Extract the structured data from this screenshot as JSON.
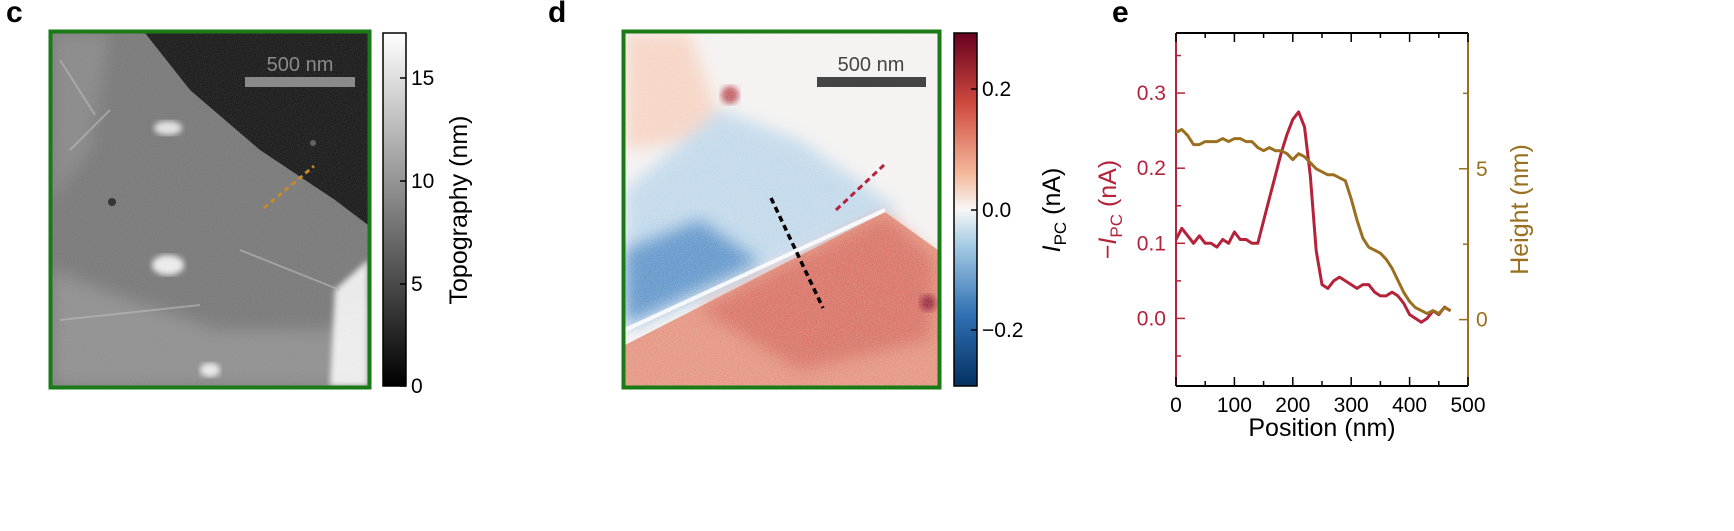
{
  "panels": {
    "c": {
      "letter": "c",
      "scalebar": "500 nm",
      "colorbar_label": "Topography (nm)",
      "colorbar_ticks": [
        "0",
        "5",
        "10",
        "15"
      ]
    },
    "d": {
      "letter": "d",
      "scalebar": "500 nm",
      "colorbar_ticks": [
        "0.2",
        "0.0",
        "−0.2"
      ]
    },
    "e": {
      "letter": "e"
    }
  },
  "colors": {
    "frame_green": "#1a7a16",
    "scalebar_gray": "#8a8a8a",
    "scalebar_dark": "#444444",
    "photocurrent_red": "#b5233b",
    "height_brown": "#9a7020",
    "cut_brown_dashed": "#c48a2a",
    "cut_black_dashed": "#000000",
    "cut_red_dashed": "#b5233b"
  },
  "chart_data": {
    "type": "line",
    "xlabel": "Position (nm)",
    "ylabel_left": "−I_PC (nA)",
    "ylabel_right": "Height (nm)",
    "xlim": [
      0,
      500
    ],
    "ylim_left": [
      -0.09,
      0.38
    ],
    "ylim_right": [
      -2.2,
      9.5
    ],
    "xticks": [
      0,
      100,
      200,
      300,
      400,
      500
    ],
    "yticks_left": [
      0.0,
      0.1,
      0.2,
      0.3
    ],
    "yticks_right": [
      0,
      5
    ],
    "series": [
      {
        "axis": "left",
        "color": "#b5233b",
        "x": [
          0,
          10,
          20,
          30,
          40,
          50,
          60,
          70,
          80,
          90,
          100,
          110,
          120,
          130,
          140,
          150,
          160,
          170,
          180,
          190,
          200,
          210,
          220,
          230,
          240,
          250,
          260,
          270,
          280,
          290,
          300,
          310,
          320,
          330,
          340,
          350,
          360,
          370,
          380,
          390,
          400,
          410,
          420,
          430,
          440,
          450,
          460,
          470
        ],
        "y": [
          0.105,
          0.12,
          0.11,
          0.1,
          0.11,
          0.1,
          0.1,
          0.095,
          0.105,
          0.1,
          0.115,
          0.105,
          0.105,
          0.1,
          0.1,
          0.13,
          0.16,
          0.19,
          0.22,
          0.245,
          0.265,
          0.275,
          0.255,
          0.19,
          0.09,
          0.045,
          0.04,
          0.05,
          0.055,
          0.05,
          0.045,
          0.04,
          0.045,
          0.045,
          0.035,
          0.03,
          0.03,
          0.035,
          0.03,
          0.02,
          0.005,
          0.0,
          -0.005,
          0.0,
          0.01,
          0.005,
          0.015,
          0.01
        ]
      },
      {
        "axis": "right",
        "color": "#9a7020",
        "x": [
          0,
          10,
          20,
          30,
          40,
          50,
          60,
          70,
          80,
          90,
          100,
          110,
          120,
          130,
          140,
          150,
          160,
          170,
          180,
          190,
          200,
          210,
          220,
          230,
          240,
          250,
          260,
          270,
          280,
          290,
          300,
          310,
          320,
          330,
          340,
          350,
          360,
          370,
          380,
          390,
          400,
          410,
          420,
          430,
          440,
          450,
          460,
          470
        ],
        "y": [
          6.2,
          6.3,
          6.1,
          5.8,
          5.8,
          5.9,
          5.9,
          5.9,
          6.0,
          5.9,
          6.0,
          6.0,
          5.9,
          5.9,
          5.7,
          5.6,
          5.7,
          5.6,
          5.6,
          5.5,
          5.3,
          5.5,
          5.4,
          5.2,
          5.0,
          4.9,
          4.8,
          4.8,
          4.7,
          4.6,
          4.0,
          3.3,
          2.7,
          2.4,
          2.3,
          2.2,
          2.0,
          1.7,
          1.3,
          0.9,
          0.6,
          0.4,
          0.3,
          0.2,
          0.3,
          0.2,
          0.4,
          0.3
        ]
      }
    ]
  }
}
